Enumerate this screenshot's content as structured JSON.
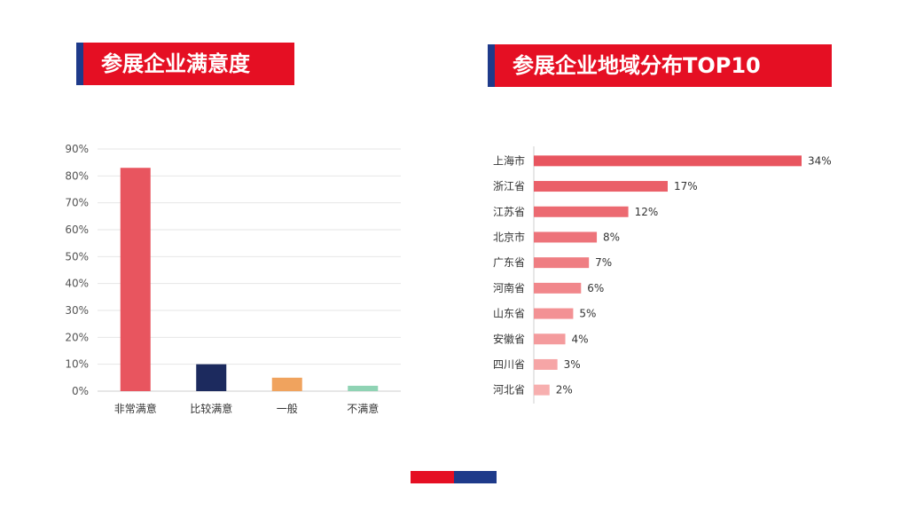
{
  "left_title": "参展企业满意度",
  "right_title": "参展企业地域分布TOP10",
  "colors": {
    "accent_red": "#e50f23",
    "accent_blue": "#1e3a8a"
  },
  "chart_data": [
    {
      "type": "bar",
      "title": "参展企业满意度",
      "categories": [
        "非常满意",
        "比较满意",
        "一般",
        "不满意"
      ],
      "values": [
        83,
        10,
        5,
        2
      ],
      "colors": [
        "#e8555f",
        "#1c2a5e",
        "#f0a35e",
        "#8fd3b4"
      ],
      "ylim": [
        0,
        90
      ],
      "yticks": [
        "0%",
        "10%",
        "20%",
        "30%",
        "40%",
        "50%",
        "60%",
        "70%",
        "80%",
        "90%"
      ],
      "grid": true
    },
    {
      "type": "bar",
      "orientation": "horizontal",
      "title": "参展企业地域分布TOP10",
      "categories": [
        "上海市",
        "浙江省",
        "江苏省",
        "北京市",
        "广东省",
        "河南省",
        "山东省",
        "安徽省",
        "四川省",
        "河北省"
      ],
      "values": [
        34,
        17,
        12,
        8,
        7,
        6,
        5,
        4,
        3,
        2
      ],
      "labels": [
        "34%",
        "17%",
        "12%",
        "8%",
        "7%",
        "6%",
        "5%",
        "4%",
        "3%",
        "2%"
      ],
      "xlim": [
        0,
        34
      ],
      "grid": false
    }
  ]
}
